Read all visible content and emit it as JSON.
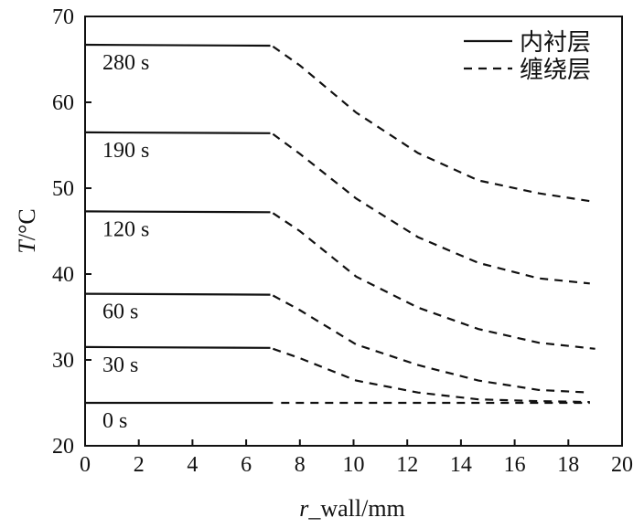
{
  "chart_data": {
    "type": "line",
    "xlabel_italic": "r",
    "xlabel_rest": "_wall/mm",
    "ylabel_italic": "T",
    "ylabel_rest": "/°C",
    "xlim": [
      0,
      20
    ],
    "ylim": [
      20,
      70
    ],
    "xticks": [
      "0",
      "2",
      "4",
      "6",
      "8",
      "10",
      "12",
      "14",
      "16",
      "18",
      "20"
    ],
    "yticks": [
      "20",
      "30",
      "40",
      "50",
      "60",
      "70"
    ],
    "grid": false,
    "legend_position": "top-right",
    "legend": [
      {
        "label": "内衬层",
        "style": "solid"
      },
      {
        "label": "缠绕层",
        "style": "dashed"
      }
    ],
    "series": [
      {
        "name": "280 s",
        "solid": [
          [
            0,
            66.7
          ],
          [
            6.9,
            66.6
          ]
        ],
        "dashed": [
          [
            7.0,
            66.5
          ],
          [
            8,
            64.3
          ],
          [
            10.1,
            58.8
          ],
          [
            12.4,
            54.1
          ],
          [
            14.65,
            50.9
          ],
          [
            16.9,
            49.4
          ],
          [
            19,
            48.4
          ]
        ]
      },
      {
        "name": "190 s",
        "solid": [
          [
            0,
            56.5
          ],
          [
            6.9,
            56.4
          ]
        ],
        "dashed": [
          [
            7.0,
            56.3
          ],
          [
            8,
            54.0
          ],
          [
            10.1,
            48.8
          ],
          [
            12.4,
            44.3
          ],
          [
            14.65,
            41.3
          ],
          [
            16.9,
            39.5
          ],
          [
            18.8,
            38.9
          ]
        ]
      },
      {
        "name": "120 s",
        "solid": [
          [
            0,
            47.3
          ],
          [
            6.9,
            47.2
          ]
        ],
        "dashed": [
          [
            7.0,
            47.1
          ],
          [
            8,
            45.0
          ],
          [
            10.1,
            39.7
          ],
          [
            12.4,
            36.1
          ],
          [
            14.65,
            33.6
          ],
          [
            16.9,
            32.0
          ],
          [
            19,
            31.3
          ]
        ]
      },
      {
        "name": "60 s",
        "solid": [
          [
            0,
            37.7
          ],
          [
            6.9,
            37.6
          ]
        ],
        "dashed": [
          [
            7.0,
            37.5
          ],
          [
            8,
            35.8
          ],
          [
            10.1,
            31.8
          ],
          [
            12.4,
            29.4
          ],
          [
            14.65,
            27.6
          ],
          [
            16.9,
            26.5
          ],
          [
            18.8,
            26.2
          ]
        ]
      },
      {
        "name": "30 s",
        "solid": [
          [
            0,
            31.5
          ],
          [
            6.9,
            31.4
          ]
        ],
        "dashed": [
          [
            7.0,
            31.3
          ],
          [
            8,
            30.2
          ],
          [
            10.1,
            27.6
          ],
          [
            12.4,
            26.2
          ],
          [
            14.65,
            25.4
          ],
          [
            16.9,
            25.2
          ],
          [
            18.8,
            25.1
          ]
        ]
      },
      {
        "name": "0 s",
        "solid": [
          [
            0,
            25.0
          ],
          [
            7.0,
            25.0
          ]
        ],
        "dashed": [
          [
            7.3,
            25.0
          ],
          [
            18.8,
            25.0
          ]
        ]
      }
    ]
  }
}
